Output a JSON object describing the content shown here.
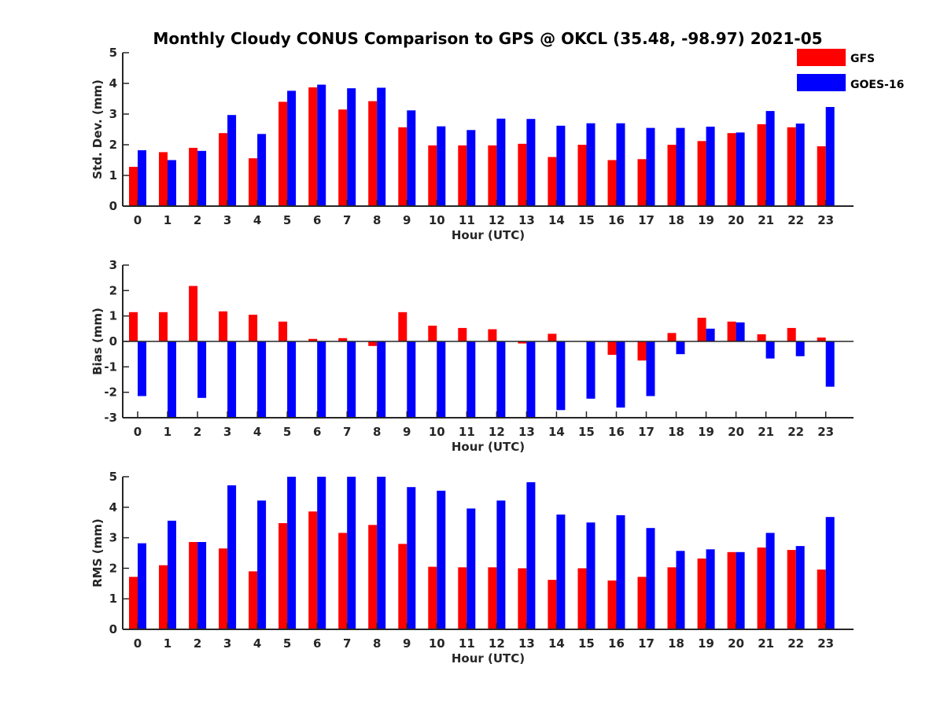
{
  "title": "Monthly Cloudy CONUS Comparison to GPS @ OKCL (35.48, -98.97) 2021-05",
  "legend": {
    "entries": [
      {
        "name": "GFS",
        "color": "#ff0000"
      },
      {
        "name": "GOES-16",
        "color": "#0000ff"
      }
    ],
    "placement": "top-right"
  },
  "chart_data": [
    {
      "type": "bar",
      "xlabel": "Hour (UTC)",
      "ylabel": "Std. Dev. (mm)",
      "ylim": [
        0,
        5
      ],
      "yticks": [
        0,
        1,
        2,
        3,
        4,
        5
      ],
      "categories": [
        "0",
        "1",
        "2",
        "3",
        "4",
        "5",
        "6",
        "7",
        "8",
        "9",
        "10",
        "11",
        "12",
        "13",
        "14",
        "15",
        "16",
        "17",
        "18",
        "19",
        "20",
        "21",
        "22",
        "23"
      ],
      "series": [
        {
          "name": "GFS",
          "color": "#ff0000",
          "values": [
            1.28,
            1.76,
            1.9,
            2.38,
            1.56,
            3.4,
            3.87,
            3.15,
            3.42,
            2.57,
            1.98,
            1.98,
            1.98,
            2.03,
            1.6,
            2.0,
            1.5,
            1.53,
            2.0,
            2.12,
            2.38,
            2.67,
            2.57,
            1.95
          ]
        },
        {
          "name": "GOES-16",
          "color": "#0000ff",
          "values": [
            1.82,
            1.5,
            1.8,
            2.97,
            2.35,
            3.76,
            3.96,
            3.84,
            3.86,
            3.12,
            2.6,
            2.48,
            2.85,
            2.84,
            2.62,
            2.7,
            2.7,
            2.55,
            2.55,
            2.59,
            2.4,
            3.1,
            2.69,
            3.23
          ]
        }
      ]
    },
    {
      "type": "bar",
      "xlabel": "Hour (UTC)",
      "ylabel": "Bias (mm)",
      "ylim": [
        -3,
        3
      ],
      "yticks": [
        -3,
        -2,
        -1,
        0,
        1,
        2,
        3
      ],
      "categories": [
        "0",
        "1",
        "2",
        "3",
        "4",
        "5",
        "6",
        "7",
        "8",
        "9",
        "10",
        "11",
        "12",
        "13",
        "14",
        "15",
        "16",
        "17",
        "18",
        "19",
        "20",
        "21",
        "22",
        "23"
      ],
      "series": [
        {
          "name": "GFS",
          "color": "#ff0000",
          "values": [
            1.15,
            1.15,
            2.18,
            1.18,
            1.05,
            0.78,
            0.1,
            0.13,
            -0.18,
            1.15,
            0.62,
            0.53,
            0.48,
            -0.08,
            0.3,
            0.0,
            -0.53,
            -0.75,
            0.33,
            0.93,
            0.78,
            0.28,
            0.53,
            0.15
          ]
        },
        {
          "name": "GOES-16",
          "color": "#0000ff",
          "values": [
            -2.15,
            -3.0,
            -2.22,
            -3.0,
            -3.0,
            -3.0,
            -3.0,
            -3.0,
            -3.0,
            -3.0,
            -3.0,
            -3.0,
            -3.0,
            -3.0,
            -2.7,
            -2.25,
            -2.6,
            -2.15,
            -0.5,
            0.5,
            0.75,
            -0.67,
            -0.58,
            -1.78
          ]
        }
      ]
    },
    {
      "type": "bar",
      "xlabel": "Hour (UTC)",
      "ylabel": "RMS (mm)",
      "ylim": [
        0,
        5
      ],
      "yticks": [
        0,
        1,
        2,
        3,
        4,
        5
      ],
      "categories": [
        "0",
        "1",
        "2",
        "3",
        "4",
        "5",
        "6",
        "7",
        "8",
        "9",
        "10",
        "11",
        "12",
        "13",
        "14",
        "15",
        "16",
        "17",
        "18",
        "19",
        "20",
        "21",
        "22",
        "23"
      ],
      "series": [
        {
          "name": "GFS",
          "color": "#ff0000",
          "values": [
            1.72,
            2.1,
            2.86,
            2.65,
            1.9,
            3.48,
            3.86,
            3.16,
            3.42,
            2.8,
            2.05,
            2.03,
            2.03,
            2.0,
            1.62,
            2.0,
            1.6,
            1.72,
            2.03,
            2.32,
            2.53,
            2.68,
            2.6,
            1.96
          ]
        },
        {
          "name": "GOES-16",
          "color": "#0000ff",
          "values": [
            2.82,
            3.56,
            2.86,
            4.72,
            4.22,
            5.0,
            5.0,
            5.0,
            5.0,
            4.66,
            4.54,
            3.96,
            4.22,
            4.82,
            3.76,
            3.5,
            3.74,
            3.32,
            2.57,
            2.62,
            2.53,
            3.16,
            2.73,
            3.68
          ]
        }
      ]
    }
  ]
}
